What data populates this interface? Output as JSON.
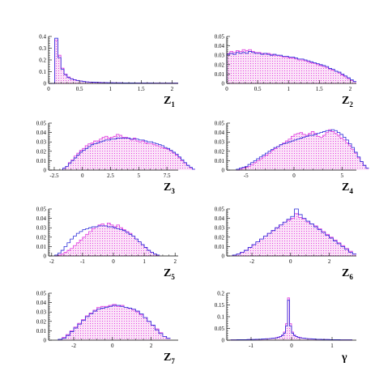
{
  "chart_data": [
    {
      "type": "bar",
      "variable": {
        "symbol": "Z",
        "subscript": "1"
      },
      "xlim": [
        0,
        2.1
      ],
      "ylim": [
        0,
        0.4
      ],
      "xticks": [
        "0",
        "0.5",
        "1",
        "1.5",
        "2"
      ],
      "xtick_values": [
        0,
        0.5,
        1,
        1.5,
        2
      ],
      "yticks": [
        "0",
        "0.1",
        "0.2",
        "0.3",
        "0.4"
      ],
      "ytick_values": [
        0,
        0.1,
        0.2,
        0.3,
        0.4
      ],
      "bin_width": 0.05,
      "bin_start": 0.0,
      "series": [
        {
          "style": "blue-outline",
          "values": [
            0,
            0,
            0.385,
            0.22,
            0.12,
            0.075,
            0.05,
            0.038,
            0.03,
            0.025,
            0.02,
            0.016,
            0.013,
            0.011,
            0.01,
            0.009,
            0.008,
            0.007,
            0.007,
            0.006,
            0.006,
            0.005,
            0.005,
            0.005,
            0.004,
            0.004,
            0.004,
            0.004,
            0.003,
            0.003,
            0.003,
            0.003,
            0.003,
            0.003,
            0.002,
            0.002,
            0.002,
            0.002,
            0.002,
            0.002,
            0.002,
            0.002
          ]
        },
        {
          "style": "magenta-hatched",
          "values": [
            0,
            0,
            0.37,
            0.24,
            0.13,
            0.08,
            0.055,
            0.04,
            0.032,
            0.026,
            0.021,
            0.017,
            0.014,
            0.012,
            0.011,
            0.009,
            0.009,
            0.008,
            0.007,
            0.006,
            0.006,
            0.005,
            0.005,
            0.005,
            0.004,
            0.004,
            0.004,
            0.004,
            0.003,
            0.003,
            0.003,
            0.003,
            0.003,
            0.003,
            0.002,
            0.002,
            0.002,
            0.002,
            0.002,
            0.002,
            0.002,
            0.002
          ]
        }
      ]
    },
    {
      "type": "bar",
      "variable": {
        "symbol": "Z",
        "subscript": "2"
      },
      "xlim": [
        0,
        2.1
      ],
      "ylim": [
        0,
        0.05
      ],
      "xticks": [
        "0",
        "0.5",
        "1",
        "1.5",
        "2"
      ],
      "xtick_values": [
        0,
        0.5,
        1,
        1.5,
        2
      ],
      "yticks": [
        "0",
        "0.01",
        "0.02",
        "0.03",
        "0.04",
        "0.05"
      ],
      "ytick_values": [
        0,
        0.01,
        0.02,
        0.03,
        0.04,
        0.05
      ],
      "bin_width": 0.05,
      "bin_start": 0.0,
      "series": [
        {
          "style": "blue-outline",
          "values": [
            0.031,
            0.032,
            0.031,
            0.033,
            0.032,
            0.033,
            0.032,
            0.034,
            0.033,
            0.032,
            0.032,
            0.031,
            0.032,
            0.031,
            0.03,
            0.031,
            0.03,
            0.03,
            0.029,
            0.029,
            0.028,
            0.028,
            0.027,
            0.026,
            0.026,
            0.025,
            0.024,
            0.023,
            0.022,
            0.021,
            0.02,
            0.019,
            0.018,
            0.016,
            0.015,
            0.013,
            0.012,
            0.01,
            0.008,
            0.006,
            0.004,
            0.002
          ]
        },
        {
          "style": "magenta-hatched",
          "values": [
            0.032,
            0.034,
            0.033,
            0.035,
            0.034,
            0.036,
            0.035,
            0.036,
            0.034,
            0.033,
            0.033,
            0.032,
            0.031,
            0.032,
            0.031,
            0.03,
            0.03,
            0.029,
            0.028,
            0.028,
            0.027,
            0.027,
            0.026,
            0.025,
            0.025,
            0.024,
            0.023,
            0.022,
            0.021,
            0.02,
            0.019,
            0.018,
            0.017,
            0.015,
            0.014,
            0.013,
            0.011,
            0.009,
            0.007,
            0.005,
            0.003,
            0.002
          ]
        }
      ]
    },
    {
      "type": "bar",
      "variable": {
        "symbol": "Z",
        "subscript": "3"
      },
      "xlim": [
        -3,
        8.5
      ],
      "ylim": [
        0,
        0.05
      ],
      "xticks": [
        "-2.5",
        "0",
        "2.5",
        "5",
        "7.5"
      ],
      "xtick_values": [
        -2.5,
        0,
        2.5,
        5,
        7.5
      ],
      "yticks": [
        "0",
        "0.01",
        "0.02",
        "0.03",
        "0.04",
        "0.05"
      ],
      "ytick_values": [
        0,
        0.01,
        0.02,
        0.03,
        0.04,
        0.05
      ],
      "bin_width": 0.25,
      "bin_start": -1.75,
      "series": [
        {
          "style": "blue-outline",
          "values": [
            0.002,
            0.004,
            0.007,
            0.01,
            0.013,
            0.016,
            0.019,
            0.021,
            0.023,
            0.025,
            0.027,
            0.028,
            0.029,
            0.03,
            0.031,
            0.032,
            0.032,
            0.033,
            0.033,
            0.034,
            0.034,
            0.034,
            0.034,
            0.034,
            0.033,
            0.033,
            0.033,
            0.032,
            0.032,
            0.031,
            0.03,
            0.03,
            0.029,
            0.028,
            0.027,
            0.026,
            0.024,
            0.023,
            0.021,
            0.019,
            0.017,
            0.014,
            0.011,
            0.008,
            0.005,
            0.003,
            0.001
          ]
        },
        {
          "style": "magenta-hatched",
          "values": [
            0.002,
            0.004,
            0.008,
            0.011,
            0.015,
            0.018,
            0.021,
            0.023,
            0.026,
            0.028,
            0.029,
            0.031,
            0.031,
            0.033,
            0.035,
            0.036,
            0.034,
            0.035,
            0.036,
            0.038,
            0.037,
            0.035,
            0.035,
            0.034,
            0.032,
            0.034,
            0.031,
            0.03,
            0.031,
            0.029,
            0.028,
            0.028,
            0.027,
            0.026,
            0.025,
            0.024,
            0.023,
            0.022,
            0.02,
            0.018,
            0.016,
            0.013,
            0.01,
            0.007,
            0.005,
            0.002,
            0.001
          ]
        }
      ]
    },
    {
      "type": "bar",
      "variable": {
        "symbol": "Z",
        "subscript": "4"
      },
      "xlim": [
        -7,
        6.5
      ],
      "ylim": [
        0,
        0.05
      ],
      "xticks": [
        "-5",
        "0",
        "5"
      ],
      "xtick_values": [
        -5,
        0,
        5
      ],
      "yticks": [
        "0",
        "0.01",
        "0.02",
        "0.03",
        "0.04",
        "0.05"
      ],
      "ytick_values": [
        0,
        0.01,
        0.02,
        0.03,
        0.04,
        0.05
      ],
      "bin_width": 0.3,
      "bin_start": -6.0,
      "series": [
        {
          "style": "blue-outline",
          "values": [
            0.001,
            0.002,
            0.003,
            0.004,
            0.006,
            0.008,
            0.01,
            0.012,
            0.014,
            0.016,
            0.018,
            0.02,
            0.022,
            0.024,
            0.025,
            0.027,
            0.028,
            0.029,
            0.03,
            0.031,
            0.032,
            0.033,
            0.034,
            0.035,
            0.036,
            0.037,
            0.037,
            0.038,
            0.039,
            0.04,
            0.041,
            0.042,
            0.042,
            0.043,
            0.042,
            0.04,
            0.038,
            0.035,
            0.032,
            0.028,
            0.024,
            0.019,
            0.014,
            0.009,
            0.005,
            0.002
          ]
        },
        {
          "style": "magenta-hatched",
          "values": [
            0.0,
            0.001,
            0.002,
            0.003,
            0.004,
            0.006,
            0.008,
            0.01,
            0.012,
            0.014,
            0.016,
            0.018,
            0.021,
            0.023,
            0.025,
            0.027,
            0.029,
            0.031,
            0.033,
            0.036,
            0.038,
            0.039,
            0.04,
            0.038,
            0.037,
            0.039,
            0.041,
            0.039,
            0.036,
            0.035,
            0.037,
            0.04,
            0.043,
            0.041,
            0.039,
            0.037,
            0.034,
            0.032,
            0.029,
            0.026,
            0.022,
            0.018,
            0.013,
            0.009,
            0.005,
            0.002
          ]
        }
      ]
    },
    {
      "type": "bar",
      "variable": {
        "symbol": "Z",
        "subscript": "5"
      },
      "xlim": [
        -2.1,
        2.1
      ],
      "ylim": [
        0,
        0.05
      ],
      "xticks": [
        "-2",
        "-1",
        "0",
        "1",
        "2"
      ],
      "xtick_values": [
        -2,
        -1,
        0,
        1,
        2
      ],
      "yticks": [
        "0",
        "0.01",
        "0.02",
        "0.03",
        "0.04",
        "0.05"
      ],
      "ytick_values": [
        0,
        0.01,
        0.02,
        0.03,
        0.04,
        0.05
      ],
      "bin_width": 0.1,
      "bin_start": -1.9,
      "series": [
        {
          "style": "blue-outline",
          "values": [
            0.001,
            0.003,
            0.006,
            0.01,
            0.014,
            0.018,
            0.021,
            0.024,
            0.026,
            0.028,
            0.029,
            0.03,
            0.031,
            0.031,
            0.032,
            0.032,
            0.032,
            0.031,
            0.031,
            0.03,
            0.029,
            0.028,
            0.027,
            0.025,
            0.023,
            0.021,
            0.018,
            0.015,
            0.012,
            0.009,
            0.006,
            0.004,
            0.002,
            0.001
          ]
        },
        {
          "style": "magenta-hatched",
          "values": [
            0.0,
            0.001,
            0.002,
            0.004,
            0.006,
            0.008,
            0.011,
            0.014,
            0.017,
            0.02,
            0.023,
            0.026,
            0.029,
            0.031,
            0.033,
            0.034,
            0.032,
            0.035,
            0.033,
            0.031,
            0.033,
            0.03,
            0.028,
            0.026,
            0.024,
            0.021,
            0.018,
            0.015,
            0.012,
            0.009,
            0.006,
            0.004,
            0.002,
            0.001
          ]
        }
      ]
    },
    {
      "type": "bar",
      "variable": {
        "symbol": "Z",
        "subscript": "6"
      },
      "xlim": [
        -3.3,
        3.4
      ],
      "ylim": [
        0,
        0.05
      ],
      "xticks": [
        "-2",
        "0",
        "2"
      ],
      "xtick_values": [
        -2,
        0,
        2
      ],
      "yticks": [
        "0",
        "0.01",
        "0.02",
        "0.03",
        "0.04",
        "0.05"
      ],
      "ytick_values": [
        0,
        0.01,
        0.02,
        0.03,
        0.04,
        0.05
      ],
      "bin_width": 0.2,
      "bin_start": -3.0,
      "series": [
        {
          "style": "blue-outline",
          "values": [
            0.001,
            0.002,
            0.004,
            0.006,
            0.009,
            0.012,
            0.015,
            0.018,
            0.021,
            0.024,
            0.027,
            0.03,
            0.033,
            0.036,
            0.039,
            0.042,
            0.05,
            0.044,
            0.04,
            0.037,
            0.034,
            0.031,
            0.028,
            0.025,
            0.022,
            0.019,
            0.016,
            0.013,
            0.01,
            0.007,
            0.004,
            0.002
          ]
        },
        {
          "style": "magenta-hatched",
          "values": [
            0.001,
            0.002,
            0.004,
            0.006,
            0.009,
            0.012,
            0.015,
            0.018,
            0.021,
            0.024,
            0.027,
            0.03,
            0.033,
            0.036,
            0.038,
            0.04,
            0.045,
            0.041,
            0.039,
            0.036,
            0.034,
            0.032,
            0.029,
            0.026,
            0.023,
            0.02,
            0.017,
            0.014,
            0.011,
            0.008,
            0.005,
            0.002
          ]
        }
      ]
    },
    {
      "type": "bar",
      "variable": {
        "symbol": "Z",
        "subscript": "7"
      },
      "xlim": [
        -3.3,
        3.4
      ],
      "ylim": [
        0,
        0.05
      ],
      "xticks": [
        "-2",
        "0",
        "2"
      ],
      "xtick_values": [
        -2,
        0,
        2
      ],
      "yticks": [
        "0",
        "0.01",
        "0.02",
        "0.03",
        "0.04",
        "0.05"
      ],
      "ytick_values": [
        0,
        0.01,
        0.02,
        0.03,
        0.04,
        0.05
      ],
      "bin_width": 0.2,
      "bin_start": -2.8,
      "series": [
        {
          "style": "blue-outline",
          "values": [
            0.001,
            0.002,
            0.005,
            0.009,
            0.013,
            0.017,
            0.021,
            0.025,
            0.028,
            0.031,
            0.033,
            0.034,
            0.035,
            0.036,
            0.037,
            0.037,
            0.036,
            0.035,
            0.034,
            0.033,
            0.031,
            0.028,
            0.024,
            0.02,
            0.016,
            0.011,
            0.007,
            0.004,
            0.002
          ]
        },
        {
          "style": "magenta-hatched",
          "values": [
            0.001,
            0.003,
            0.006,
            0.01,
            0.014,
            0.018,
            0.022,
            0.026,
            0.029,
            0.032,
            0.035,
            0.036,
            0.036,
            0.037,
            0.038,
            0.036,
            0.037,
            0.035,
            0.034,
            0.032,
            0.03,
            0.027,
            0.024,
            0.02,
            0.016,
            0.012,
            0.008,
            0.004,
            0.002
          ]
        }
      ]
    },
    {
      "type": "bar",
      "variable": {
        "symbol": "γ",
        "subscript": ""
      },
      "xlim": [
        -1.6,
        1.6
      ],
      "ylim": [
        0,
        0.2
      ],
      "xticks": [
        "-1",
        "0",
        "1"
      ],
      "xtick_values": [
        -1,
        0,
        1
      ],
      "yticks": [
        "0",
        "0.05",
        "0.1",
        "0.15",
        "0.2"
      ],
      "ytick_values": [
        0,
        0.05,
        0.1,
        0.15,
        0.2
      ],
      "bin_width": 0.05,
      "bin_start": -1.5,
      "series": [
        {
          "style": "blue-outline",
          "values": [
            0.001,
            0.001,
            0.001,
            0.002,
            0.002,
            0.002,
            0.002,
            0.002,
            0.003,
            0.003,
            0.003,
            0.003,
            0.004,
            0.004,
            0.004,
            0.005,
            0.005,
            0.006,
            0.006,
            0.007,
            0.008,
            0.009,
            0.01,
            0.012,
            0.015,
            0.02,
            0.03,
            0.06,
            0.17,
            0.06,
            0.03,
            0.02,
            0.015,
            0.012,
            0.01,
            0.009,
            0.008,
            0.007,
            0.006,
            0.006,
            0.005,
            0.005,
            0.004,
            0.004,
            0.004,
            0.003,
            0.003,
            0.003,
            0.003,
            0.002,
            0.002,
            0.002,
            0.002,
            0.002,
            0.001,
            0.001,
            0.001,
            0.001,
            0.001,
            0.001
          ]
        },
        {
          "style": "magenta-hatched",
          "values": [
            0.001,
            0.001,
            0.001,
            0.001,
            0.002,
            0.002,
            0.002,
            0.002,
            0.002,
            0.003,
            0.003,
            0.003,
            0.003,
            0.004,
            0.004,
            0.004,
            0.005,
            0.005,
            0.006,
            0.007,
            0.008,
            0.009,
            0.011,
            0.013,
            0.016,
            0.022,
            0.035,
            0.07,
            0.18,
            0.07,
            0.035,
            0.022,
            0.016,
            0.013,
            0.011,
            0.009,
            0.008,
            0.007,
            0.006,
            0.005,
            0.005,
            0.004,
            0.004,
            0.004,
            0.003,
            0.003,
            0.003,
            0.003,
            0.002,
            0.002,
            0.002,
            0.002,
            0.002,
            0.001,
            0.001,
            0.001,
            0.001,
            0.001,
            0.001,
            0.001
          ]
        }
      ]
    }
  ],
  "colors": {
    "blue_series": "#2b2bd9",
    "magenta_series": "#e040e0",
    "magenta_fill": "#f7c9f3",
    "axis": "#000000",
    "background": "#ffffff"
  }
}
